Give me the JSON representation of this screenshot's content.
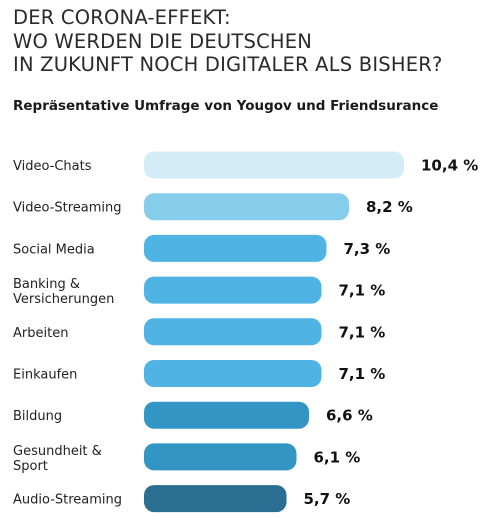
{
  "title_lines": [
    "DER CORONA-EFFEKT:",
    "WO WERDEN DIE DEUTSCHEN",
    "IN ZUKUNFT NOCH DIGITALER ALS BISHER?"
  ],
  "subtitle": "Repräsentative Umfrage von Yougov und Friendsurance",
  "chart_data": {
    "type": "bar",
    "orientation": "horizontal",
    "title": "DER CORONA-EFFEKT: WO WERDEN DIE DEUTSCHEN IN ZUKUNFT NOCH DIGITALER ALS BISHER?",
    "subtitle": "Repräsentative Umfrage von Yougov und Friendsurance",
    "categories": [
      [
        "Video-Chats"
      ],
      [
        "Video-Streaming"
      ],
      [
        "Social Media"
      ],
      [
        "Banking &",
        "Versicherungen"
      ],
      [
        "Arbeiten"
      ],
      [
        "Einkaufen"
      ],
      [
        "Bildung"
      ],
      [
        "Gesundheit &",
        "Sport"
      ],
      [
        "Audio-Streaming"
      ]
    ],
    "values": [
      10.4,
      8.2,
      7.3,
      7.1,
      7.1,
      7.1,
      6.6,
      6.1,
      5.7
    ],
    "value_labels": [
      "10,4 %",
      "8,2 %",
      "7,3 %",
      "7,1 %",
      "7,1 %",
      "7,1 %",
      "6,6 %",
      "6,1 %",
      "5,7 %"
    ],
    "bar_colors": [
      "#d3ecf7",
      "#86cdec",
      "#4fb3e3",
      "#4fb3e3",
      "#4fb3e3",
      "#4fb3e3",
      "#3395c4",
      "#3395c4",
      "#2a6f91"
    ],
    "xlim": [
      0,
      10.4
    ],
    "grid": false,
    "legend": "none"
  }
}
